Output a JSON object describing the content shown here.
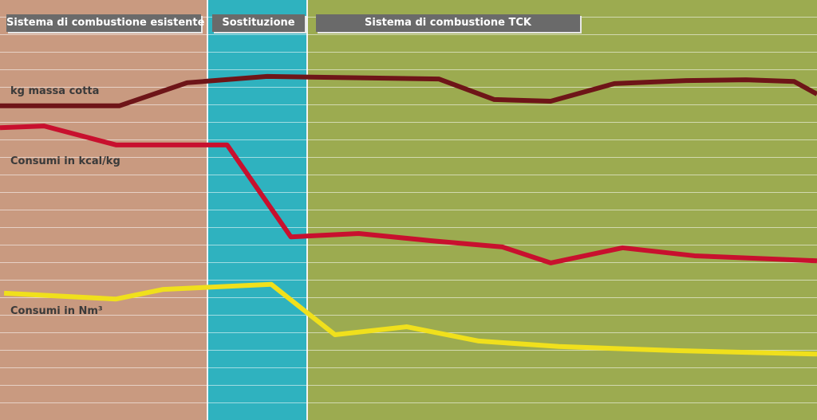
{
  "chart_data": {
    "type": "line",
    "sections": [
      "Sistema di combustione esistente",
      "Sostituzione",
      "Sistema di combustione TCK"
    ],
    "xlim": [
      0,
      100
    ],
    "ylim": [
      0,
      100
    ],
    "series": [
      {
        "name": "kg massa cotta",
        "color": "#6e1518",
        "x": [
          0,
          14.6,
          22.9,
          32.7,
          53.7,
          60.5,
          67.4,
          75.2,
          84,
          91.3,
          97.2,
          100
        ],
        "values": [
          74.8,
          74.8,
          80.3,
          81.8,
          81.2,
          76.3,
          75.9,
          80.1,
          80.8,
          81.0,
          80.6,
          77.6
        ]
      },
      {
        "name": "Consumi in kcal/kg",
        "color": "#c8102e",
        "x": [
          0,
          5.4,
          14.2,
          27.8,
          35.6,
          43.9,
          52.7,
          61.5,
          67.4,
          76.2,
          85,
          100
        ],
        "values": [
          69.6,
          70.0,
          65.5,
          65.5,
          43.6,
          44.4,
          42.7,
          41.2,
          37.4,
          41.0,
          39.1,
          37.9
        ]
      },
      {
        "name": "Consumi in Nm³",
        "color": "#f0e01c",
        "x": [
          0.5,
          14.2,
          20,
          33.2,
          41,
          49.8,
          58.6,
          68.4,
          83,
          100
        ],
        "values": [
          30.2,
          28.8,
          31.1,
          32.3,
          20.3,
          22.2,
          18.8,
          17.5,
          16.5,
          15.7
        ]
      }
    ]
  }
}
